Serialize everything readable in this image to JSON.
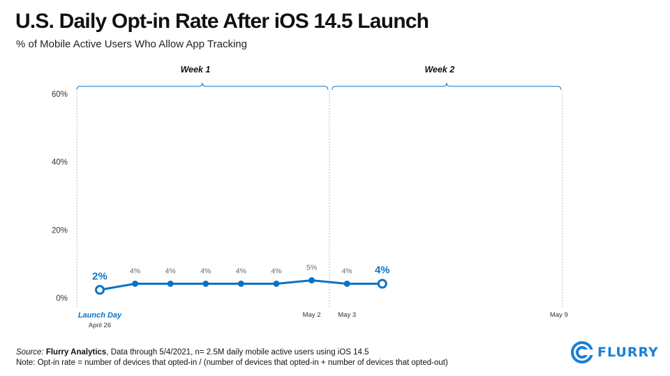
{
  "header": {
    "title": "U.S. Daily Opt-in Rate After iOS 14.5 Launch",
    "subtitle": "% of Mobile Active Users Who Allow App Tracking"
  },
  "chart_data": {
    "type": "line",
    "title": "U.S. Daily Opt-in Rate After iOS 14.5 Launch",
    "ylabel": "% of Mobile Active Users Who Allow App Tracking",
    "ylim": [
      0,
      60
    ],
    "yticks": [
      0,
      20,
      40,
      60
    ],
    "ytick_labels": [
      "0%",
      "20%",
      "40%",
      "60%"
    ],
    "x_days": 14,
    "series": [
      {
        "name": "Opt-in rate",
        "day_index": [
          0,
          1,
          2,
          3,
          4,
          5,
          6,
          7,
          8
        ],
        "values": [
          2.4,
          4.2,
          4.2,
          4.2,
          4.2,
          4.2,
          5.2,
          4.2,
          4.2
        ],
        "labels": [
          "2%",
          "4%",
          "4%",
          "4%",
          "4%",
          "4%",
          "5%",
          "4%",
          "4%"
        ],
        "emphasized": [
          0,
          8
        ]
      }
    ],
    "x_labels": [
      {
        "day": 0,
        "text": "Launch Day",
        "style": "emphasis"
      },
      {
        "day": 0,
        "text": "April 26",
        "style": "sub"
      },
      {
        "day": 6,
        "text": "May 2",
        "style": "normal"
      },
      {
        "day": 7,
        "text": "May 3",
        "style": "normal"
      },
      {
        "day": 13,
        "text": "May 9",
        "style": "normal"
      }
    ],
    "weeks": [
      {
        "label": "Week 1",
        "start_day": 0,
        "end_day": 6
      },
      {
        "label": "Week 2",
        "start_day": 7,
        "end_day": 13
      }
    ]
  },
  "footer": {
    "source_prefix": "Source: ",
    "source_name": "Flurry Analytics",
    "source_rest": ", Data through 5/4/2021, n= 2.5M daily mobile active users using iOS 14.5",
    "note": "Note: Opt-in rate = number of devices that opted-in / (number of devices that opted-in + number of devices that opted-out)"
  },
  "logo": {
    "text": "FLURRY"
  },
  "colors": {
    "accent": "#0b72c4",
    "muted": "#666666",
    "grid": "#bfbfbf"
  }
}
